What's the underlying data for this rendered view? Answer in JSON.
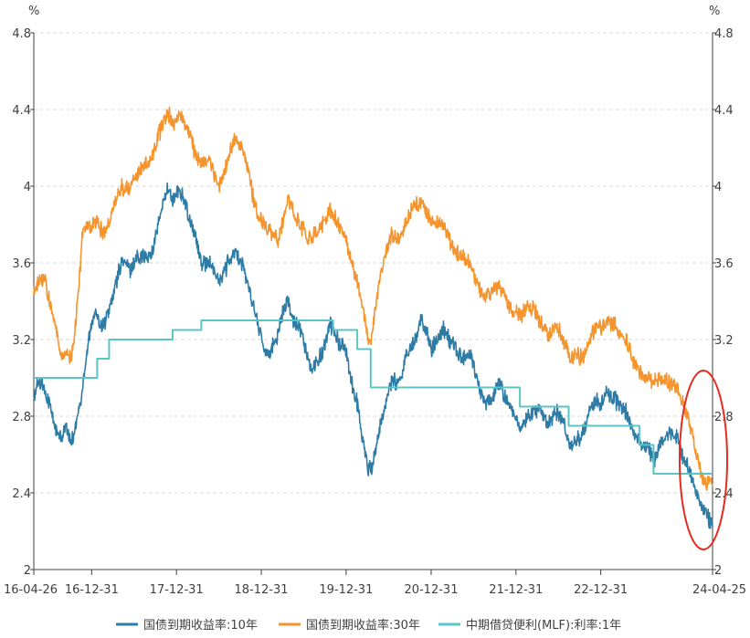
{
  "chart_data": {
    "type": "line",
    "title": "",
    "y_unit_left": "%",
    "y_unit_right": "%",
    "ylim": [
      2,
      4.8
    ],
    "yticks": [
      2,
      2.4,
      2.8,
      3.2,
      3.6,
      4,
      4.4,
      4.8
    ],
    "ytick_labels": [
      "2",
      "2.4",
      "2.8",
      "3.2",
      "3.6",
      "4",
      "4.4",
      "4.8"
    ],
    "xlim": [
      "2016-04-26",
      "2024-04-25"
    ],
    "xticks": [
      "2016-04-26",
      "2016-12-31",
      "2017-12-31",
      "2018-12-31",
      "2019-12-31",
      "2020-12-31",
      "2021-12-31",
      "2022-12-31",
      "2024-04-25"
    ],
    "xtick_labels": [
      "16-04-26",
      "16-12-31",
      "17-12-31",
      "18-12-31",
      "19-12-31",
      "20-12-31",
      "21-12-31",
      "22-12-31",
      "24-04-25"
    ],
    "grid": true,
    "legend_position": "bottom",
    "series": [
      {
        "name": "国债到期收益率:10年",
        "color": "#2e7ca6",
        "points": [
          [
            "2016-04-26",
            2.92
          ],
          [
            "2016-05-10",
            2.95
          ],
          [
            "2016-06-01",
            2.98
          ],
          [
            "2016-07-01",
            2.87
          ],
          [
            "2016-08-01",
            2.72
          ],
          [
            "2016-08-20",
            2.68
          ],
          [
            "2016-09-10",
            2.74
          ],
          [
            "2016-10-05",
            2.66
          ],
          [
            "2016-10-25",
            2.76
          ],
          [
            "2016-11-15",
            2.88
          ],
          [
            "2016-12-05",
            3.08
          ],
          [
            "2016-12-20",
            3.22
          ],
          [
            "2017-01-15",
            3.35
          ],
          [
            "2017-02-05",
            3.28
          ],
          [
            "2017-03-01",
            3.3
          ],
          [
            "2017-04-01",
            3.42
          ],
          [
            "2017-05-10",
            3.62
          ],
          [
            "2017-06-15",
            3.56
          ],
          [
            "2017-07-15",
            3.64
          ],
          [
            "2017-08-15",
            3.62
          ],
          [
            "2017-09-15",
            3.65
          ],
          [
            "2017-10-15",
            3.8
          ],
          [
            "2017-11-10",
            3.95
          ],
          [
            "2017-11-25",
            3.98
          ],
          [
            "2017-12-15",
            3.92
          ],
          [
            "2018-01-10",
            3.98
          ],
          [
            "2018-01-25",
            3.95
          ],
          [
            "2018-02-20",
            3.85
          ],
          [
            "2018-03-20",
            3.75
          ],
          [
            "2018-04-20",
            3.58
          ],
          [
            "2018-05-20",
            3.62
          ],
          [
            "2018-06-10",
            3.55
          ],
          [
            "2018-07-10",
            3.5
          ],
          [
            "2018-08-10",
            3.6
          ],
          [
            "2018-09-10",
            3.65
          ],
          [
            "2018-10-10",
            3.6
          ],
          [
            "2018-11-10",
            3.45
          ],
          [
            "2018-12-10",
            3.32
          ],
          [
            "2019-01-10",
            3.15
          ],
          [
            "2019-02-05",
            3.13
          ],
          [
            "2019-03-05",
            3.2
          ],
          [
            "2019-04-20",
            3.42
          ],
          [
            "2019-05-20",
            3.3
          ],
          [
            "2019-06-20",
            3.25
          ],
          [
            "2019-08-01",
            3.05
          ],
          [
            "2019-09-15",
            3.12
          ],
          [
            "2019-10-25",
            3.28
          ],
          [
            "2019-12-01",
            3.18
          ],
          [
            "2019-12-31",
            3.15
          ],
          [
            "2020-01-20",
            3.0
          ],
          [
            "2020-02-20",
            2.85
          ],
          [
            "2020-03-10",
            2.68
          ],
          [
            "2020-04-05",
            2.52
          ],
          [
            "2020-04-25",
            2.55
          ],
          [
            "2020-05-20",
            2.72
          ],
          [
            "2020-06-20",
            2.88
          ],
          [
            "2020-07-15",
            3.0
          ],
          [
            "2020-08-15",
            2.95
          ],
          [
            "2020-09-15",
            3.12
          ],
          [
            "2020-10-15",
            3.18
          ],
          [
            "2020-11-20",
            3.3
          ],
          [
            "2020-12-15",
            3.22
          ],
          [
            "2020-12-31",
            3.15
          ],
          [
            "2021-02-20",
            3.26
          ],
          [
            "2021-03-20",
            3.2
          ],
          [
            "2021-04-20",
            3.15
          ],
          [
            "2021-05-20",
            3.1
          ],
          [
            "2021-06-20",
            3.12
          ],
          [
            "2021-07-15",
            3.0
          ],
          [
            "2021-08-15",
            2.88
          ],
          [
            "2021-09-15",
            2.88
          ],
          [
            "2021-10-20",
            2.98
          ],
          [
            "2021-11-10",
            2.9
          ],
          [
            "2021-12-15",
            2.82
          ],
          [
            "2021-12-31",
            2.78
          ],
          [
            "2022-01-20",
            2.72
          ],
          [
            "2022-02-20",
            2.8
          ],
          [
            "2022-03-20",
            2.82
          ],
          [
            "2022-04-20",
            2.82
          ],
          [
            "2022-05-20",
            2.75
          ],
          [
            "2022-06-20",
            2.82
          ],
          [
            "2022-07-20",
            2.78
          ],
          [
            "2022-08-20",
            2.64
          ],
          [
            "2022-09-20",
            2.68
          ],
          [
            "2022-10-20",
            2.72
          ],
          [
            "2022-11-20",
            2.85
          ],
          [
            "2022-12-15",
            2.88
          ],
          [
            "2022-12-31",
            2.84
          ],
          [
            "2023-01-20",
            2.92
          ],
          [
            "2023-02-20",
            2.9
          ],
          [
            "2023-03-20",
            2.86
          ],
          [
            "2023-04-20",
            2.82
          ],
          [
            "2023-05-20",
            2.72
          ],
          [
            "2023-06-20",
            2.65
          ],
          [
            "2023-07-20",
            2.64
          ],
          [
            "2023-08-20",
            2.58
          ],
          [
            "2023-09-20",
            2.68
          ],
          [
            "2023-10-20",
            2.7
          ],
          [
            "2023-11-20",
            2.7
          ],
          [
            "2023-12-15",
            2.6
          ],
          [
            "2024-01-05",
            2.55
          ],
          [
            "2024-01-25",
            2.48
          ],
          [
            "2024-02-15",
            2.42
          ],
          [
            "2024-03-05",
            2.33
          ],
          [
            "2024-03-25",
            2.3
          ],
          [
            "2024-04-10",
            2.26
          ],
          [
            "2024-04-25",
            2.22
          ]
        ]
      },
      {
        "name": "国债到期收益率:30年",
        "color": "#f5942c",
        "points": [
          [
            "2016-04-26",
            3.45
          ],
          [
            "2016-05-15",
            3.5
          ],
          [
            "2016-06-10",
            3.52
          ],
          [
            "2016-07-10",
            3.35
          ],
          [
            "2016-08-05",
            3.22
          ],
          [
            "2016-08-20",
            3.1
          ],
          [
            "2016-09-15",
            3.12
          ],
          [
            "2016-10-05",
            3.1
          ],
          [
            "2016-10-20",
            3.25
          ],
          [
            "2016-11-05",
            3.45
          ],
          [
            "2016-11-20",
            3.72
          ],
          [
            "2016-12-10",
            3.8
          ],
          [
            "2016-12-31",
            3.78
          ],
          [
            "2017-01-20",
            3.82
          ],
          [
            "2017-02-15",
            3.75
          ],
          [
            "2017-03-10",
            3.78
          ],
          [
            "2017-04-10",
            3.92
          ],
          [
            "2017-05-10",
            4.0
          ],
          [
            "2017-06-10",
            3.98
          ],
          [
            "2017-07-10",
            4.05
          ],
          [
            "2017-08-10",
            4.1
          ],
          [
            "2017-09-10",
            4.12
          ],
          [
            "2017-10-10",
            4.25
          ],
          [
            "2017-11-10",
            4.35
          ],
          [
            "2017-11-25",
            4.38
          ],
          [
            "2017-12-20",
            4.32
          ],
          [
            "2018-01-10",
            4.38
          ],
          [
            "2018-02-01",
            4.33
          ],
          [
            "2018-02-25",
            4.28
          ],
          [
            "2018-03-20",
            4.18
          ],
          [
            "2018-04-20",
            4.12
          ],
          [
            "2018-05-20",
            4.15
          ],
          [
            "2018-06-10",
            4.05
          ],
          [
            "2018-07-10",
            4.0
          ],
          [
            "2018-08-10",
            4.15
          ],
          [
            "2018-09-10",
            4.25
          ],
          [
            "2018-10-05",
            4.22
          ],
          [
            "2018-11-05",
            4.08
          ],
          [
            "2018-12-05",
            3.88
          ],
          [
            "2019-01-10",
            3.8
          ],
          [
            "2019-02-15",
            3.75
          ],
          [
            "2019-03-15",
            3.72
          ],
          [
            "2019-04-05",
            3.82
          ],
          [
            "2019-04-25",
            3.95
          ],
          [
            "2019-05-20",
            3.85
          ],
          [
            "2019-06-20",
            3.8
          ],
          [
            "2019-07-20",
            3.72
          ],
          [
            "2019-08-20",
            3.75
          ],
          [
            "2019-09-20",
            3.8
          ],
          [
            "2019-10-20",
            3.88
          ],
          [
            "2019-11-20",
            3.82
          ],
          [
            "2019-12-31",
            3.72
          ],
          [
            "2020-01-20",
            3.62
          ],
          [
            "2020-02-20",
            3.48
          ],
          [
            "2020-03-10",
            3.38
          ],
          [
            "2020-04-01",
            3.22
          ],
          [
            "2020-04-15",
            3.18
          ],
          [
            "2020-05-05",
            3.35
          ],
          [
            "2020-05-25",
            3.52
          ],
          [
            "2020-06-20",
            3.65
          ],
          [
            "2020-07-15",
            3.75
          ],
          [
            "2020-08-15",
            3.72
          ],
          [
            "2020-09-15",
            3.82
          ],
          [
            "2020-10-10",
            3.88
          ],
          [
            "2020-11-10",
            3.92
          ],
          [
            "2020-11-25",
            3.9
          ],
          [
            "2020-12-31",
            3.82
          ],
          [
            "2021-02-20",
            3.8
          ],
          [
            "2021-03-20",
            3.72
          ],
          [
            "2021-04-20",
            3.65
          ],
          [
            "2021-05-20",
            3.62
          ],
          [
            "2021-06-20",
            3.6
          ],
          [
            "2021-07-20",
            3.48
          ],
          [
            "2021-08-20",
            3.42
          ],
          [
            "2021-09-20",
            3.45
          ],
          [
            "2021-10-20",
            3.48
          ],
          [
            "2021-11-20",
            3.4
          ],
          [
            "2021-12-20",
            3.35
          ],
          [
            "2022-01-20",
            3.32
          ],
          [
            "2022-02-20",
            3.38
          ],
          [
            "2022-03-20",
            3.35
          ],
          [
            "2022-04-20",
            3.28
          ],
          [
            "2022-05-20",
            3.22
          ],
          [
            "2022-06-20",
            3.28
          ],
          [
            "2022-07-20",
            3.2
          ],
          [
            "2022-08-20",
            3.1
          ],
          [
            "2022-09-20",
            3.12
          ],
          [
            "2022-10-20",
            3.1
          ],
          [
            "2022-11-20",
            3.22
          ],
          [
            "2022-12-15",
            3.28
          ],
          [
            "2022-12-31",
            3.26
          ],
          [
            "2023-01-20",
            3.3
          ],
          [
            "2023-02-20",
            3.28
          ],
          [
            "2023-03-20",
            3.25
          ],
          [
            "2023-04-20",
            3.2
          ],
          [
            "2023-05-20",
            3.08
          ],
          [
            "2023-06-20",
            3.02
          ],
          [
            "2023-07-20",
            3.0
          ],
          [
            "2023-08-20",
            2.98
          ],
          [
            "2023-09-20",
            3.0
          ],
          [
            "2023-10-20",
            2.98
          ],
          [
            "2023-11-20",
            2.95
          ],
          [
            "2023-12-15",
            2.88
          ],
          [
            "2024-01-05",
            2.8
          ],
          [
            "2024-01-25",
            2.72
          ],
          [
            "2024-02-15",
            2.62
          ],
          [
            "2024-03-05",
            2.5
          ],
          [
            "2024-03-25",
            2.46
          ],
          [
            "2024-04-10",
            2.45
          ],
          [
            "2024-04-25",
            2.43
          ]
        ]
      },
      {
        "name": "中期借贷便利(MLF):利率:1年",
        "color": "#5bc4c4",
        "points": [
          [
            "2016-04-26",
            3.0
          ],
          [
            "2017-01-24",
            3.0
          ],
          [
            "2017-01-24",
            3.1
          ],
          [
            "2017-03-16",
            3.1
          ],
          [
            "2017-03-16",
            3.2
          ],
          [
            "2017-12-14",
            3.2
          ],
          [
            "2017-12-14",
            3.25
          ],
          [
            "2018-04-17",
            3.25
          ],
          [
            "2018-04-17",
            3.3
          ],
          [
            "2019-11-05",
            3.3
          ],
          [
            "2019-11-05",
            3.25
          ],
          [
            "2020-02-17",
            3.25
          ],
          [
            "2020-02-17",
            3.15
          ],
          [
            "2020-04-15",
            3.15
          ],
          [
            "2020-04-15",
            2.95
          ],
          [
            "2022-01-17",
            2.95
          ],
          [
            "2022-01-17",
            2.85
          ],
          [
            "2022-08-15",
            2.85
          ],
          [
            "2022-08-15",
            2.75
          ],
          [
            "2023-06-15",
            2.75
          ],
          [
            "2023-06-15",
            2.65
          ],
          [
            "2023-08-15",
            2.65
          ],
          [
            "2023-08-15",
            2.5
          ],
          [
            "2024-04-25",
            2.5
          ]
        ]
      }
    ]
  }
}
